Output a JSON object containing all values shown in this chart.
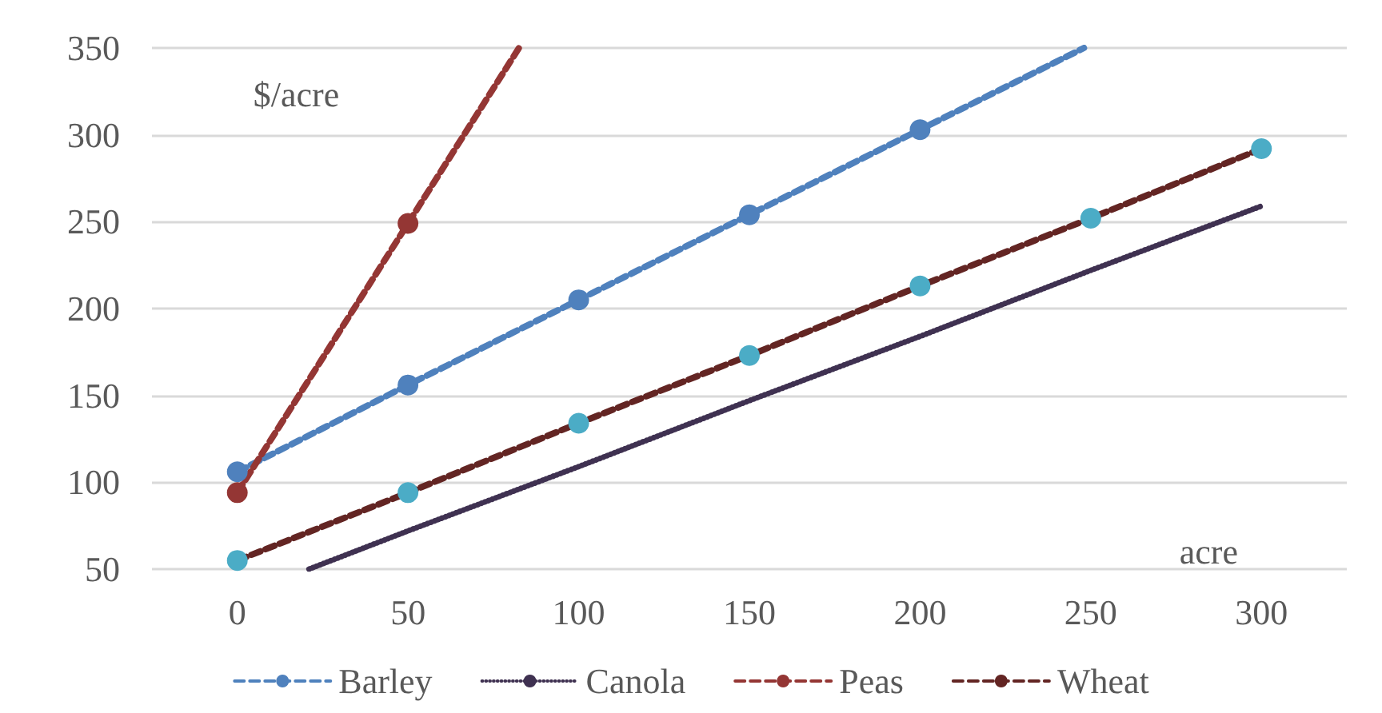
{
  "chart_data": {
    "type": "line",
    "xlabel": "acre",
    "ylabel": "$/acre",
    "xlim": [
      -25,
      325
    ],
    "xticks": [
      0,
      50,
      100,
      150,
      200,
      250,
      300
    ],
    "ylim": [
      50,
      350
    ],
    "yticks": [
      50,
      100,
      150,
      200,
      250,
      300,
      350
    ],
    "grid": "y",
    "legend": "bottom",
    "marker": "circle",
    "series": [
      {
        "name": "Barley",
        "color": "#4f81bd",
        "line_style": "dashed",
        "x": [
          0,
          50,
          100,
          150,
          200,
          248
        ],
        "values": [
          106,
          156,
          205,
          254,
          303,
          350
        ],
        "colors": [
          "#4f81bd",
          "#4f81bd",
          "#4f81bd",
          "#4f81bd",
          "#4f81bd",
          null
        ]
      },
      {
        "name": "Canola",
        "color": "#3f3151",
        "line_style": "dotted",
        "marker": "none",
        "x": [
          21,
          50,
          100,
          150,
          200,
          250,
          300
        ],
        "values": [
          50,
          72,
          109,
          147,
          184,
          222,
          259
        ]
      },
      {
        "name": "Peas",
        "color": "#943634",
        "line_style": "dashed",
        "x": [
          0,
          50,
          82.5
        ],
        "values": [
          94,
          249,
          350
        ],
        "colors": [
          "#943634",
          "#943634",
          null
        ]
      },
      {
        "name": "Wheat",
        "color": "#632523",
        "line_style": "dashed",
        "x": [
          0,
          50,
          100,
          150,
          200,
          250,
          300
        ],
        "values": [
          55,
          94,
          134,
          173,
          213,
          252,
          292
        ],
        "colors": [
          "#4bacc6",
          "#4bacc6",
          "#4bacc6",
          "#4bacc6",
          "#4bacc6",
          "#4bacc6",
          "#4bacc6"
        ]
      }
    ]
  }
}
